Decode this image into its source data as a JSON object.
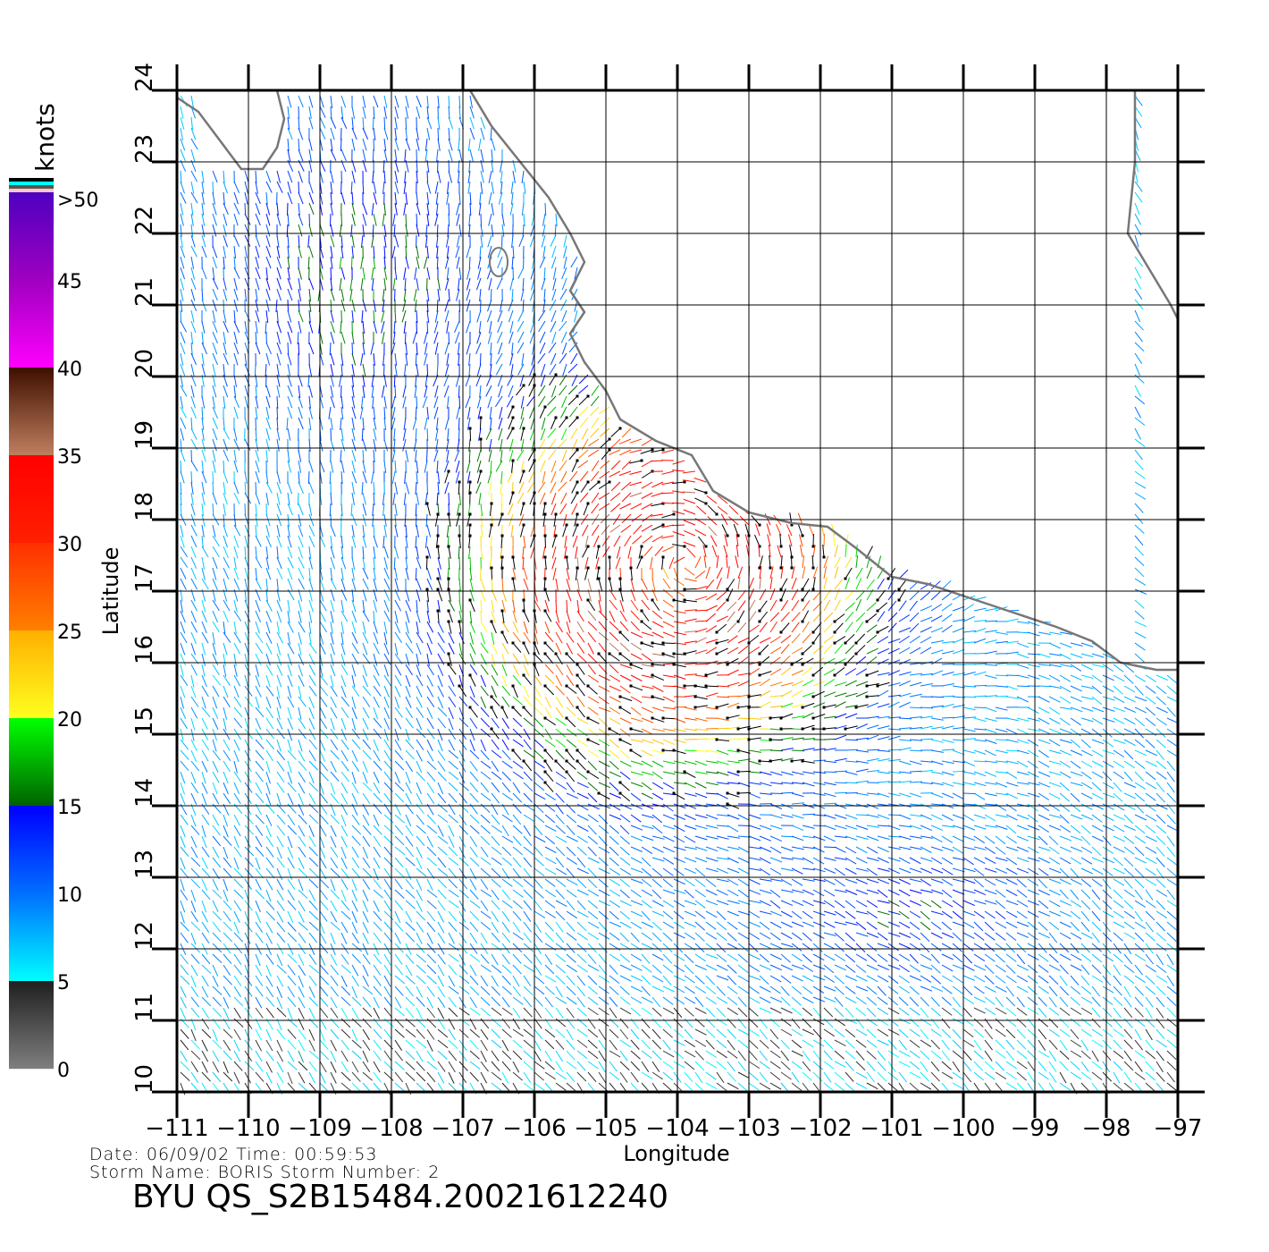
{
  "chart_data": {
    "type": "wind-vector-map",
    "xlabel": "Longitude",
    "ylabel": "Latitude",
    "xlim": [
      -111,
      -97
    ],
    "ylim": [
      10,
      24
    ],
    "x_ticks": [
      "-111",
      "-110",
      "-109",
      "-108",
      "-107",
      "-106",
      "-105",
      "-104",
      "-103",
      "-102",
      "-101",
      "-100",
      "-99",
      "-98",
      "-97"
    ],
    "y_ticks": [
      "10",
      "11",
      "12",
      "13",
      "14",
      "15",
      "16",
      "17",
      "18",
      "19",
      "20",
      "21",
      "22",
      "23",
      "24"
    ],
    "grid": true,
    "colorbar": {
      "unit": "knots",
      "labels": [
        "0",
        "5",
        "10",
        "15",
        "20",
        "25",
        "30",
        "35",
        "40",
        "45",
        ">50"
      ],
      "placement": "left",
      "colors": [
        "#808080",
        "#00ffff",
        "#0000ff",
        "#00ff00",
        "#ffd000",
        "#ff8000",
        "#ff2000",
        "#c08060",
        "#ff00ff",
        "#6000c0"
      ]
    },
    "storm_center_approx": {
      "lon": -104.2,
      "lat": 17.2
    }
  },
  "info": {
    "date_line": "Date: 06/09/02   Time: 00:59:53",
    "storm_line": "Storm  Name: BORIS   Storm  Number: 2",
    "title": "BYU  QS_S2B15484.20021612240"
  }
}
